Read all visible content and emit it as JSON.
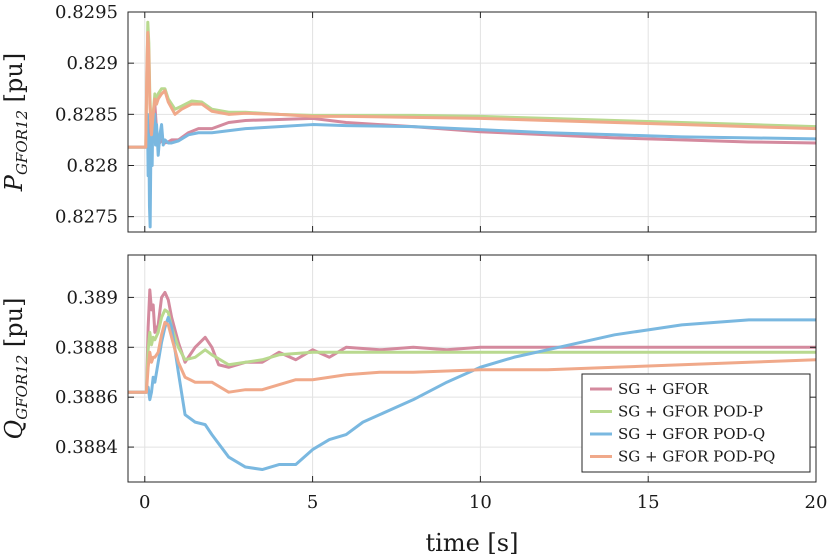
{
  "chart_data": [
    {
      "type": "line",
      "ylabel": "P_{GFOR12} [pu]",
      "ylabel_main": "P",
      "ylabel_sub": "GFOR12",
      "ylabel_unit": " [pu]",
      "xlim": [
        -0.5,
        20
      ],
      "ylim": [
        0.82735,
        0.8295
      ],
      "xticks": [
        0,
        5,
        10,
        15,
        20
      ],
      "xtick_labels": [
        "",
        "",
        "",
        "",
        ""
      ],
      "yticks": [
        0.8275,
        0.828,
        0.8285,
        0.829,
        0.8295
      ],
      "ytick_labels": [
        "0.8275",
        "0.828",
        "0.8285",
        "0.829",
        "0.8295"
      ],
      "grid": true,
      "series": [
        {
          "name": "SG + GFOR",
          "color": "#d48a9e",
          "x": [
            -0.5,
            0.05,
            0.1,
            0.15,
            0.2,
            0.25,
            0.3,
            0.35,
            0.4,
            0.5,
            0.6,
            0.7,
            0.8,
            1,
            1.3,
            1.6,
            2,
            2.5,
            3,
            4,
            5,
            6,
            7,
            8,
            10,
            12,
            14,
            16,
            18,
            20
          ],
          "y": [
            0.82818,
            0.82818,
            0.82845,
            0.8284,
            0.8281,
            0.82845,
            0.8286,
            0.82835,
            0.8282,
            0.82825,
            0.82822,
            0.82823,
            0.82825,
            0.82825,
            0.82832,
            0.82836,
            0.82836,
            0.82842,
            0.82844,
            0.82845,
            0.82846,
            0.82842,
            0.8284,
            0.82838,
            0.82833,
            0.8283,
            0.82827,
            0.82825,
            0.82823,
            0.82822
          ]
        },
        {
          "name": "SG + GFOR POD-P",
          "color": "#b9d98f",
          "x": [
            -0.5,
            0.03,
            0.06,
            0.09,
            0.12,
            0.15,
            0.2,
            0.25,
            0.3,
            0.35,
            0.4,
            0.5,
            0.6,
            0.7,
            0.9,
            1.1,
            1.4,
            1.7,
            2,
            2.5,
            3,
            4,
            5,
            6,
            8,
            10,
            12,
            14,
            16,
            18,
            20
          ],
          "y": [
            0.82818,
            0.82818,
            0.8288,
            0.8294,
            0.8292,
            0.8287,
            0.8283,
            0.8285,
            0.8287,
            0.8286,
            0.8287,
            0.82875,
            0.82875,
            0.82865,
            0.82855,
            0.82858,
            0.82863,
            0.82862,
            0.82855,
            0.82852,
            0.82852,
            0.8285,
            0.82849,
            0.82849,
            0.82849,
            0.82848,
            0.82846,
            0.82844,
            0.82842,
            0.8284,
            0.82838
          ]
        },
        {
          "name": "SG + GFOR POD-Q",
          "color": "#7ab8e0",
          "x": [
            -0.5,
            0.05,
            0.08,
            0.1,
            0.12,
            0.14,
            0.16,
            0.18,
            0.2,
            0.22,
            0.24,
            0.26,
            0.28,
            0.3,
            0.32,
            0.35,
            0.4,
            0.45,
            0.5,
            0.55,
            0.6,
            0.7,
            0.8,
            1,
            1.3,
            1.6,
            2,
            3,
            4,
            5,
            6,
            8,
            10,
            12,
            14,
            16,
            18,
            20
          ],
          "y": [
            0.82818,
            0.82818,
            0.8285,
            0.8279,
            0.8283,
            0.8276,
            0.8274,
            0.8281,
            0.8284,
            0.828,
            0.8285,
            0.8284,
            0.8283,
            0.8285,
            0.8282,
            0.8284,
            0.8281,
            0.8283,
            0.8284,
            0.8282,
            0.82825,
            0.82822,
            0.82822,
            0.82824,
            0.8283,
            0.82832,
            0.82832,
            0.82836,
            0.82838,
            0.8284,
            0.82839,
            0.82838,
            0.82835,
            0.82832,
            0.8283,
            0.82828,
            0.82827,
            0.82826
          ]
        },
        {
          "name": "SG + GFOR POD-PQ",
          "color": "#f0a98a",
          "x": [
            -0.5,
            0.03,
            0.06,
            0.09,
            0.12,
            0.15,
            0.2,
            0.25,
            0.3,
            0.35,
            0.4,
            0.5,
            0.6,
            0.7,
            0.9,
            1.1,
            1.4,
            1.7,
            2,
            2.5,
            3,
            4,
            5,
            6,
            8,
            10,
            12,
            14,
            16,
            18,
            20
          ],
          "y": [
            0.82818,
            0.82818,
            0.8289,
            0.8293,
            0.8291,
            0.8286,
            0.8283,
            0.8285,
            0.82865,
            0.8286,
            0.82865,
            0.8287,
            0.82873,
            0.82862,
            0.8285,
            0.82855,
            0.8286,
            0.8286,
            0.82853,
            0.8285,
            0.82851,
            0.8285,
            0.82848,
            0.82848,
            0.82847,
            0.82846,
            0.82844,
            0.82842,
            0.8284,
            0.82838,
            0.82836
          ]
        }
      ]
    },
    {
      "type": "line",
      "xlabel": "time [s]",
      "ylabel": "Q_{GFOR12} [pu]",
      "ylabel_main": "Q",
      "ylabel_sub": "GFOR12",
      "ylabel_unit": " [pu]",
      "xlim": [
        -0.5,
        20
      ],
      "ylim": [
        0.38826,
        0.38917
      ],
      "xticks": [
        0,
        5,
        10,
        15,
        20
      ],
      "xtick_labels": [
        "0",
        "5",
        "10",
        "15",
        "20"
      ],
      "yticks": [
        0.3884,
        0.3886,
        0.3888,
        0.389
      ],
      "ytick_labels": [
        "0.3884",
        "0.3886",
        "0.3888",
        "0.389"
      ],
      "grid": true,
      "legend_position": "bottom-right",
      "series": [
        {
          "name": "SG + GFOR",
          "color": "#d48a9e",
          "x": [
            -0.5,
            0.05,
            0.1,
            0.15,
            0.2,
            0.25,
            0.3,
            0.4,
            0.5,
            0.6,
            0.7,
            0.8,
            1,
            1.2,
            1.5,
            1.8,
            2,
            2.2,
            2.5,
            3,
            3.5,
            4,
            4.5,
            5,
            5.5,
            6,
            7,
            8,
            9,
            10,
            12,
            14,
            16,
            18,
            20
          ],
          "y": [
            0.38862,
            0.38862,
            0.38888,
            0.38903,
            0.38895,
            0.38897,
            0.38886,
            0.38889,
            0.389,
            0.38902,
            0.38899,
            0.38892,
            0.38882,
            0.38874,
            0.3888,
            0.38884,
            0.3888,
            0.38873,
            0.38872,
            0.38874,
            0.38874,
            0.38878,
            0.38875,
            0.38879,
            0.38876,
            0.3888,
            0.38879,
            0.3888,
            0.38879,
            0.3888,
            0.3888,
            0.3888,
            0.3888,
            0.3888,
            0.3888
          ]
        },
        {
          "name": "SG + GFOR POD-P",
          "color": "#b9d98f",
          "x": [
            -0.5,
            0.05,
            0.1,
            0.15,
            0.2,
            0.25,
            0.3,
            0.4,
            0.5,
            0.6,
            0.7,
            0.8,
            1,
            1.2,
            1.5,
            1.8,
            2,
            2.5,
            3,
            3.5,
            4,
            5,
            6,
            8,
            10,
            12,
            14,
            16,
            18,
            20
          ],
          "y": [
            0.38862,
            0.38862,
            0.38879,
            0.38886,
            0.38881,
            0.38884,
            0.38883,
            0.38886,
            0.38892,
            0.38895,
            0.38894,
            0.38888,
            0.3888,
            0.38875,
            0.38876,
            0.38879,
            0.38877,
            0.38873,
            0.38874,
            0.38875,
            0.38877,
            0.38878,
            0.38878,
            0.38878,
            0.38878,
            0.38878,
            0.38878,
            0.38878,
            0.38878,
            0.38878
          ]
        },
        {
          "name": "SG + GFOR POD-Q",
          "color": "#7ab8e0",
          "x": [
            -0.5,
            0.05,
            0.1,
            0.15,
            0.2,
            0.25,
            0.3,
            0.4,
            0.5,
            0.6,
            0.7,
            0.8,
            1,
            1.2,
            1.5,
            1.8,
            2,
            2.5,
            3,
            3.5,
            4,
            4.5,
            5,
            5.5,
            6,
            6.5,
            7,
            7.5,
            8,
            9,
            10,
            11,
            12,
            13,
            14,
            15,
            16,
            17,
            18,
            19,
            20
          ],
          "y": [
            0.38862,
            0.38862,
            0.38864,
            0.38859,
            0.38862,
            0.38868,
            0.38866,
            0.38874,
            0.38882,
            0.38888,
            0.38892,
            0.38888,
            0.3887,
            0.38853,
            0.3885,
            0.38849,
            0.38845,
            0.38836,
            0.38832,
            0.38831,
            0.38833,
            0.38833,
            0.38839,
            0.38843,
            0.38845,
            0.3885,
            0.38853,
            0.38856,
            0.38859,
            0.38866,
            0.38872,
            0.38876,
            0.38879,
            0.38882,
            0.38885,
            0.38887,
            0.38889,
            0.3889,
            0.38891,
            0.38891,
            0.38891
          ]
        },
        {
          "name": "SG + GFOR POD-PQ",
          "color": "#f0a98a",
          "x": [
            -0.5,
            0.05,
            0.1,
            0.15,
            0.2,
            0.25,
            0.3,
            0.4,
            0.5,
            0.6,
            0.7,
            0.8,
            1,
            1.2,
            1.5,
            2,
            2.5,
            3,
            3.5,
            4,
            4.5,
            5,
            6,
            7,
            8,
            10,
            12,
            14,
            16,
            18,
            20
          ],
          "y": [
            0.38862,
            0.38862,
            0.38872,
            0.38878,
            0.38874,
            0.38876,
            0.38876,
            0.38878,
            0.38885,
            0.3889,
            0.38889,
            0.38884,
            0.38874,
            0.38868,
            0.38866,
            0.38866,
            0.38862,
            0.38863,
            0.38863,
            0.38865,
            0.38867,
            0.38867,
            0.38869,
            0.3887,
            0.3887,
            0.38871,
            0.38871,
            0.38872,
            0.38873,
            0.38874,
            0.38875
          ]
        }
      ]
    }
  ]
}
